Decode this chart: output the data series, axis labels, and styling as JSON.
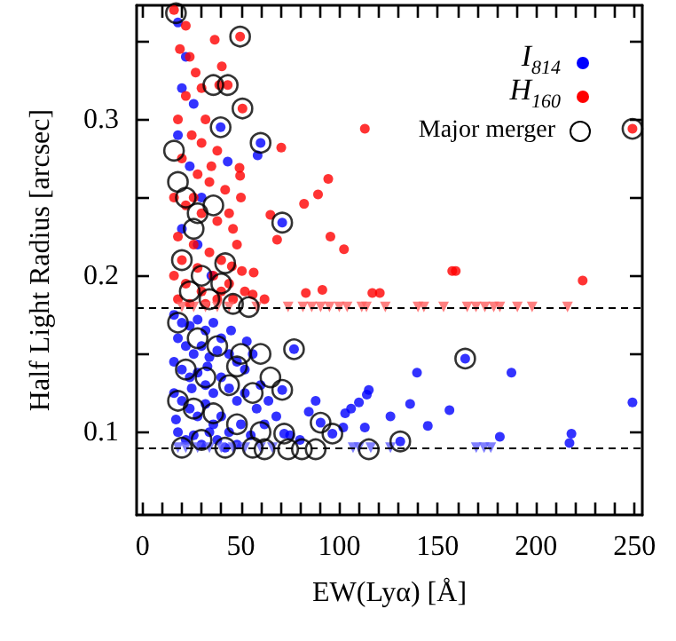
{
  "chart_data": {
    "type": "scatter",
    "xlabel": "EW(Lyα) [Å]",
    "ylabel": "Half Light Radius [arcsec]",
    "xlim": [
      -3,
      254
    ],
    "ylim": [
      0.047,
      0.373
    ],
    "xticks": [
      0,
      {
        "value": 10,
        "label": null
      },
      {
        "value": 20,
        "label": null
      },
      {
        "value": 30,
        "label": null
      },
      {
        "value": 40,
        "label": null
      },
      50,
      {
        "value": 60,
        "label": null
      },
      {
        "value": 70,
        "label": null
      },
      {
        "value": 80,
        "label": null
      },
      {
        "value": 90,
        "label": null
      },
      100,
      {
        "value": 110,
        "label": null
      },
      {
        "value": 120,
        "label": null
      },
      {
        "value": 130,
        "label": null
      },
      {
        "value": 140,
        "label": null
      },
      150,
      {
        "value": 160,
        "label": null
      },
      {
        "value": 170,
        "label": null
      },
      {
        "value": 180,
        "label": null
      },
      {
        "value": 190,
        "label": null
      },
      200,
      {
        "value": 210,
        "label": null
      },
      {
        "value": 220,
        "label": null
      },
      {
        "value": 230,
        "label": null
      },
      {
        "value": 240,
        "label": null
      },
      250
    ],
    "yticks": [
      0.1,
      {
        "value": 0.15,
        "label": null
      },
      0.2,
      {
        "value": 0.25,
        "label": null
      },
      0.3,
      {
        "value": 0.35,
        "label": null
      }
    ],
    "grid": false,
    "legend": "top right",
    "ref_lines": [
      {
        "axis": "y",
        "value": 0.18,
        "color": "#000000",
        "line_style": "dashed"
      },
      {
        "axis": "y",
        "value": 0.09,
        "color": "#000000",
        "line_style": "dashed"
      }
    ],
    "series": [
      {
        "name": "I$_{814}$",
        "color": "#0000ff",
        "marker": "circle",
        "x": [
          18,
          22,
          20,
          26,
          18,
          24,
          30,
          20,
          28,
          35,
          16,
          20,
          24,
          28,
          32,
          36,
          40,
          18,
          22,
          26,
          30,
          34,
          38,
          44,
          48,
          52,
          56,
          60,
          16,
          20,
          24,
          28,
          32,
          36,
          40,
          44,
          48,
          52,
          58,
          64,
          16,
          20,
          24,
          28,
          32,
          36,
          40,
          44,
          50,
          55,
          62,
          68,
          18,
          22,
          26,
          30,
          34,
          38,
          42,
          48,
          17,
          25,
          33,
          45,
          53,
          75,
          80,
          60,
          58.5,
          71,
          39.7,
          43.3,
          77,
          164,
          139.5,
          187.5,
          71,
          88,
          115,
          114,
          84.5,
          103,
          106,
          110,
          126,
          136,
          156,
          249,
          145,
          102,
          90.5,
          96.5,
          113,
          181.6,
          218,
          217,
          131,
          72
        ],
        "values": [
          0.362,
          0.34,
          0.32,
          0.31,
          0.29,
          0.27,
          0.25,
          0.23,
          0.22,
          0.2,
          0.175,
          0.17,
          0.168,
          0.172,
          0.165,
          0.17,
          0.16,
          0.16,
          0.155,
          0.15,
          0.155,
          0.148,
          0.152,
          0.15,
          0.145,
          0.14,
          0.15,
          0.13,
          0.145,
          0.14,
          0.135,
          0.138,
          0.13,
          0.125,
          0.135,
          0.128,
          0.12,
          0.125,
          0.115,
          0.12,
          0.125,
          0.12,
          0.115,
          0.11,
          0.118,
          0.105,
          0.11,
          0.1,
          0.105,
          0.098,
          0.105,
          0.11,
          0.1,
          0.095,
          0.098,
          0.092,
          0.1,
          0.095,
          0.09,
          0.092,
          0.108,
          0.128,
          0.142,
          0.165,
          0.158,
          0.098,
          0.095,
          0.285,
          0.277,
          0.234,
          0.295,
          0.273,
          0.153,
          0.147,
          0.138,
          0.138,
          0.127,
          0.12,
          0.127,
          0.124,
          0.113,
          0.112,
          0.115,
          0.119,
          0.11,
          0.118,
          0.114,
          0.119,
          0.104,
          0.103,
          0.106,
          0.099,
          0.103,
          0.097,
          0.099,
          0.093,
          0.094,
          0.099
        ]
      },
      {
        "name": "H$_{160}$",
        "color": "#ff0000",
        "marker": "circle",
        "x": [
          16,
          22,
          19,
          27,
          22,
          32,
          18,
          25,
          30,
          38,
          20,
          28,
          34,
          42,
          16,
          22,
          30,
          38,
          46,
          18,
          26,
          34,
          40,
          48,
          20,
          28,
          36,
          44,
          52,
          16,
          22,
          30,
          38,
          46,
          56,
          62,
          18,
          24,
          32,
          40,
          26,
          35,
          44,
          50,
          24,
          30,
          49.6,
          36.7,
          40.3,
          39,
          43.3,
          50.8,
          113,
          249,
          70.5,
          49.3,
          49.6,
          94.4,
          89.2,
          82.1,
          65,
          68.4,
          95.5,
          102.4,
          45.4,
          50.5,
          56.5,
          157.4,
          159.2,
          223.7,
          83,
          91.4,
          116.8,
          120.6
        ],
        "values": [
          0.37,
          0.36,
          0.345,
          0.33,
          0.315,
          0.3,
          0.3,
          0.29,
          0.285,
          0.28,
          0.275,
          0.265,
          0.26,
          0.255,
          0.25,
          0.245,
          0.24,
          0.235,
          0.23,
          0.225,
          0.22,
          0.215,
          0.21,
          0.22,
          0.21,
          0.205,
          0.2,
          0.195,
          0.19,
          0.2,
          0.195,
          0.19,
          0.185,
          0.185,
          0.188,
          0.185,
          0.185,
          0.182,
          0.182,
          0.19,
          0.25,
          0.27,
          0.24,
          0.25,
          0.34,
          0.32,
          0.353,
          0.351,
          0.334,
          0.322,
          0.322,
          0.307,
          0.294,
          0.294,
          0.282,
          0.269,
          0.264,
          0.262,
          0.252,
          0.246,
          0.239,
          0.223,
          0.225,
          0.217,
          0.206,
          0.203,
          0.202,
          0.203,
          0.203,
          0.197,
          0.189,
          0.191,
          0.189,
          0.189
        ]
      },
      {
        "name": "Major merger",
        "color": "#000000",
        "marker": "circle",
        "x": [
          17,
          49.6,
          43.3,
          36,
          50.8,
          39.7,
          16,
          249,
          60,
          18,
          22,
          28,
          36,
          26,
          20,
          30,
          40,
          24,
          34,
          46,
          54,
          71,
          18,
          28,
          38,
          50,
          60,
          22,
          32,
          44,
          56,
          65,
          77,
          164,
          71,
          18,
          26,
          36,
          48,
          60,
          72,
          90.5,
          96.5,
          131,
          20,
          30,
          42,
          56,
          74,
          81,
          88,
          115,
          62,
          48,
          42
        ],
        "values": [
          0.368,
          0.353,
          0.322,
          0.322,
          0.307,
          0.295,
          0.28,
          0.294,
          0.285,
          0.26,
          0.25,
          0.24,
          0.245,
          0.23,
          0.21,
          0.2,
          0.195,
          0.19,
          0.185,
          0.182,
          0.18,
          0.234,
          0.17,
          0.16,
          0.155,
          0.15,
          0.15,
          0.14,
          0.135,
          0.13,
          0.125,
          0.135,
          0.153,
          0.147,
          0.127,
          0.12,
          0.115,
          0.112,
          0.105,
          0.1,
          0.099,
          0.106,
          0.099,
          0.094,
          0.09,
          0.095,
          0.09,
          0.09,
          0.089,
          0.089,
          0.089,
          0.089,
          0.089,
          0.142,
          0.208
        ]
      },
      {
        "color": "#ff6060",
        "marker": "triangle",
        "x": [
          20,
          26,
          32,
          38,
          44,
          58,
          74,
          81.5,
          86,
          90.5,
          95,
          100,
          104,
          111.4,
          113.8,
          123.4,
          140,
          143,
          153,
          165,
          169.5,
          174,
          178.5,
          181.6,
          190.5,
          198,
          216
        ],
        "values": [
          0.18,
          0.18,
          0.18,
          0.18,
          0.18,
          0.18,
          0.18,
          0.18,
          0.18,
          0.18,
          0.18,
          0.18,
          0.18,
          0.18,
          0.18,
          0.18,
          0.18,
          0.18,
          0.18,
          0.18,
          0.18,
          0.18,
          0.18,
          0.18,
          0.18,
          0.18,
          0.18
        ]
      },
      {
        "color": "#6060ff",
        "marker": "triangle",
        "x": [
          18,
          22,
          28,
          34,
          40,
          46,
          52,
          60,
          66,
          107,
          110,
          116,
          126,
          169.6,
          173.6,
          177
        ],
        "values": [
          0.09,
          0.09,
          0.09,
          0.09,
          0.09,
          0.09,
          0.09,
          0.09,
          0.09,
          0.09,
          0.09,
          0.09,
          0.09,
          0.09,
          0.09,
          0.09
        ]
      }
    ]
  }
}
